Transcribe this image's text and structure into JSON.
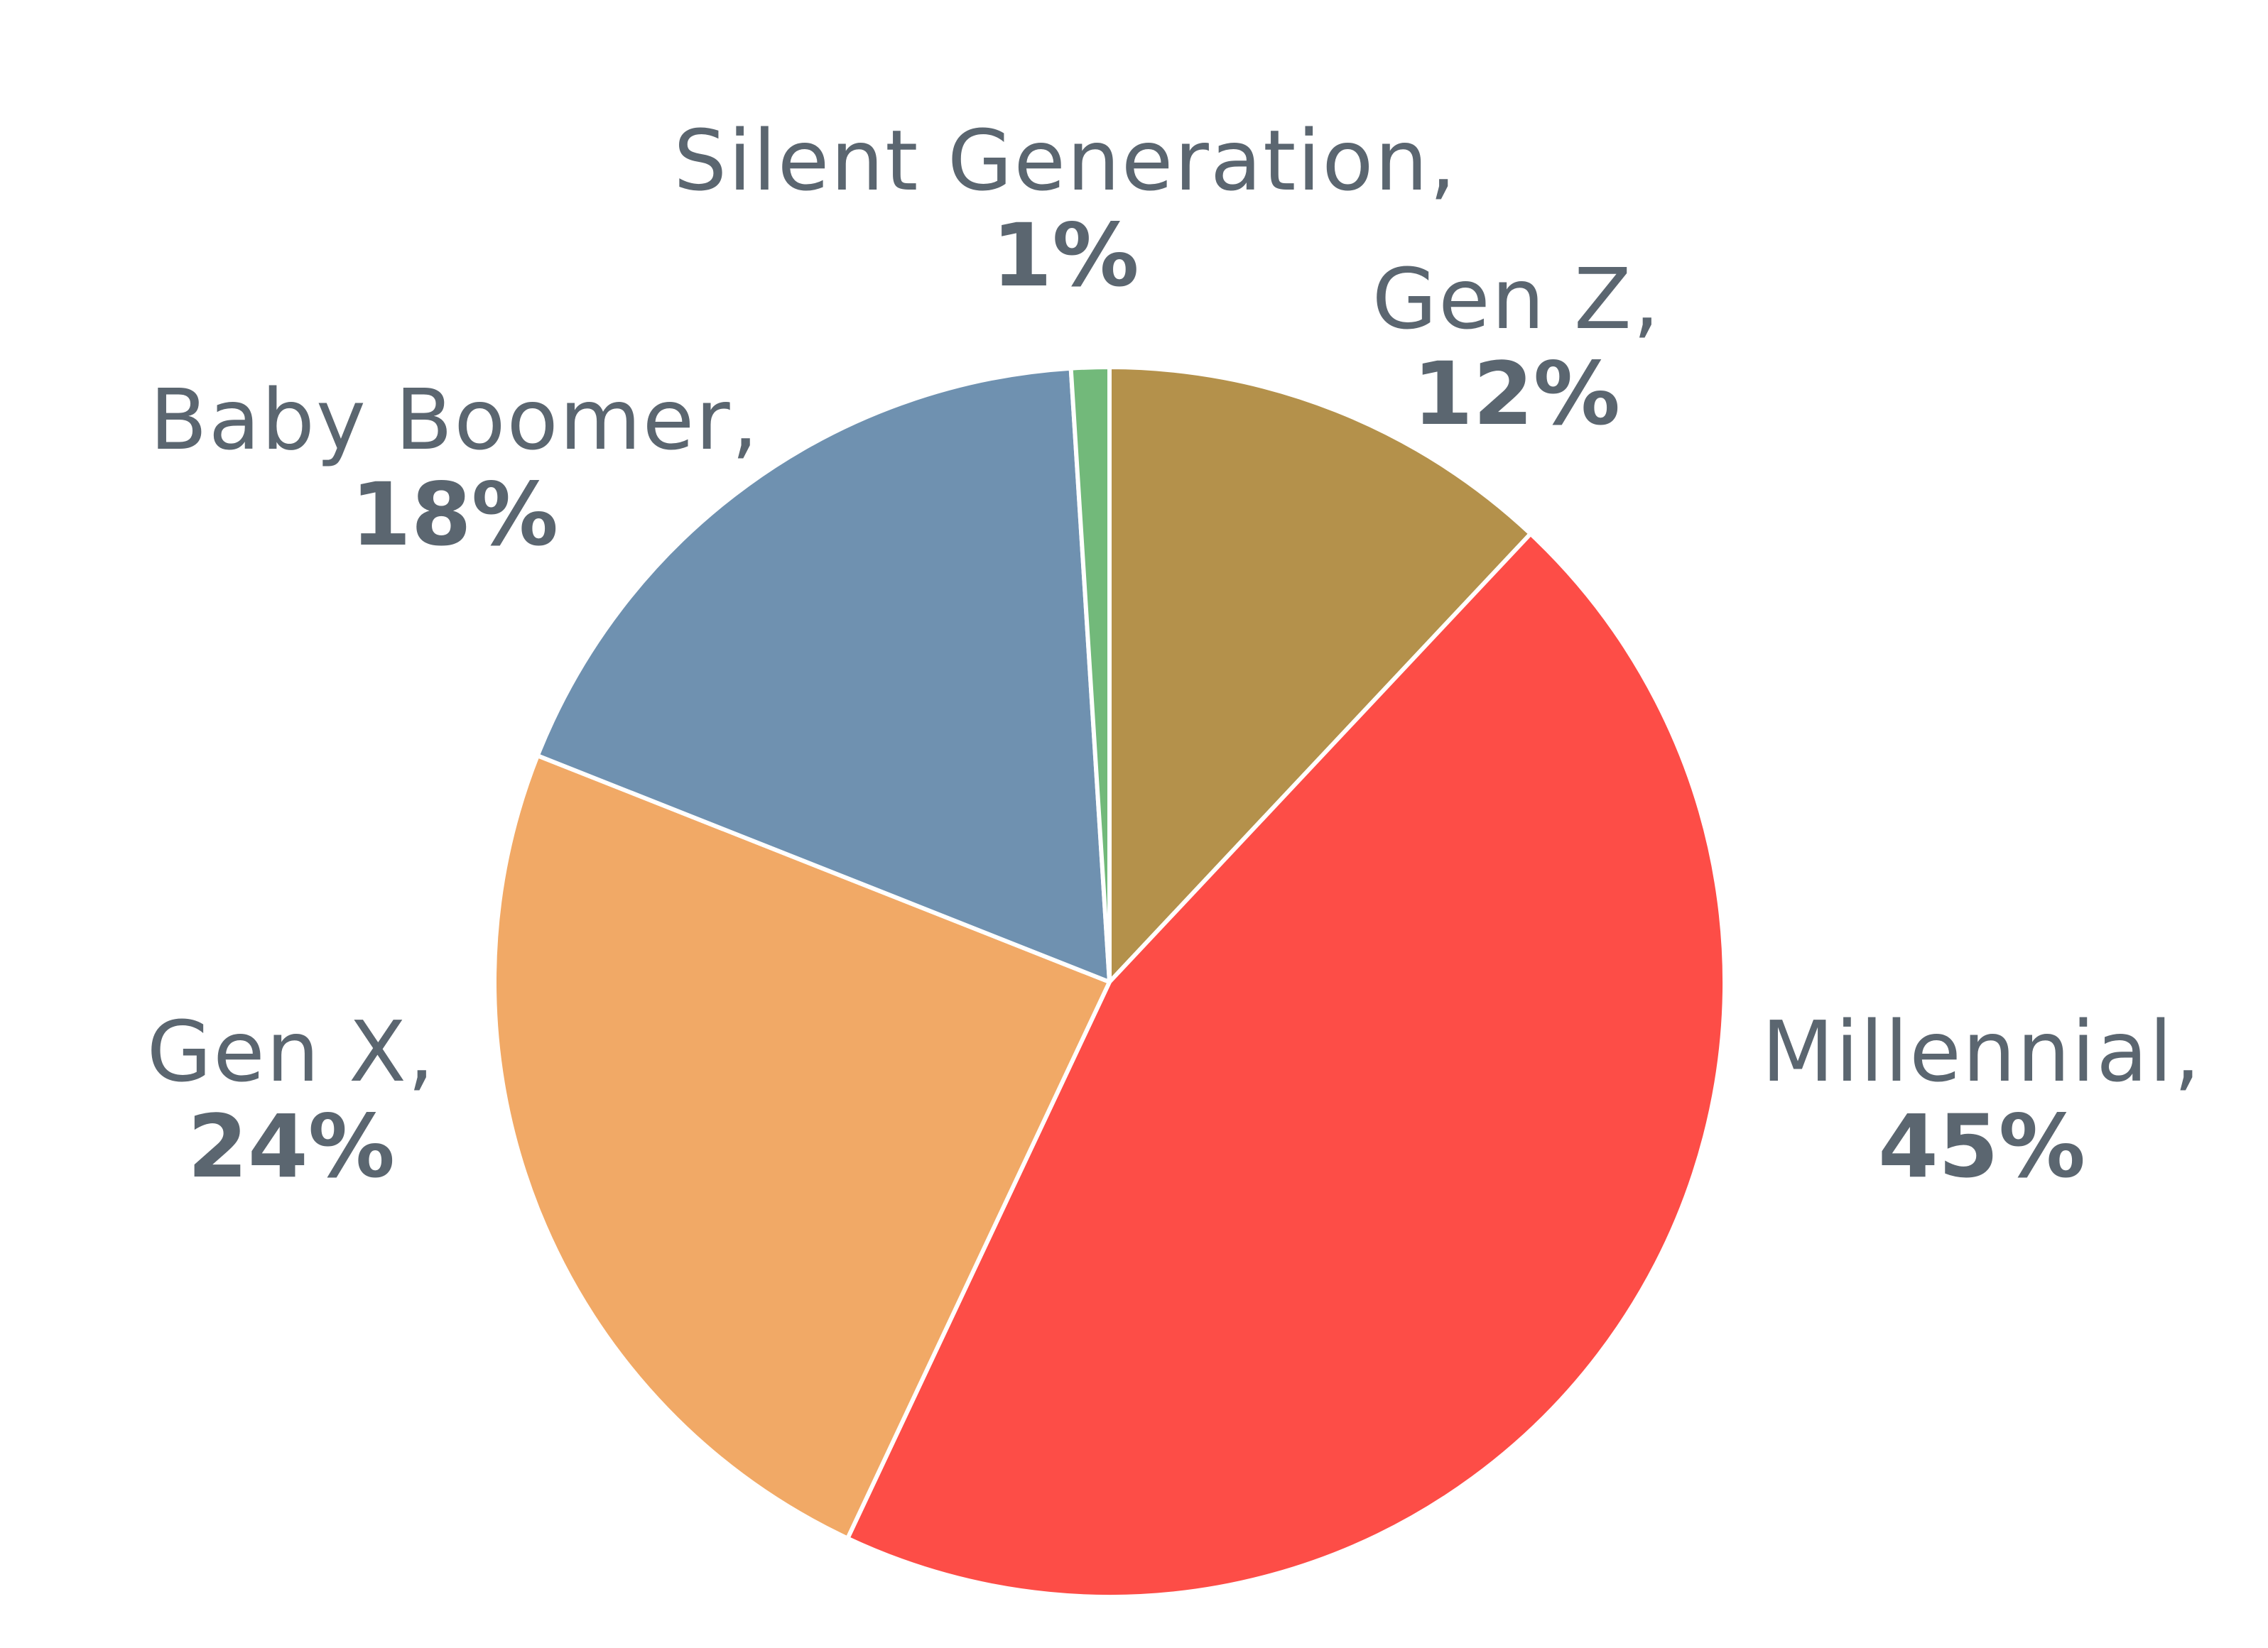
{
  "chart_data": {
    "type": "pie",
    "start_angle_deg": 0,
    "direction": "clockwise",
    "slices": [
      {
        "label": "Gen Z",
        "value": 12,
        "value_label": "12%",
        "color": "#b4914b"
      },
      {
        "label": "Millennial",
        "value": 45,
        "value_label": "45%",
        "color": "#fd4d47"
      },
      {
        "label": "Gen X",
        "value": 24,
        "value_label": "24%",
        "color": "#f1a966"
      },
      {
        "label": "Baby Boomer",
        "value": 18,
        "value_label": "18%",
        "color": "#6f91b0"
      },
      {
        "label": "Silent Generation",
        "value": 1,
        "value_label": "1%",
        "color": "#72b97a"
      }
    ],
    "label_separator": ",",
    "label_color": "#5b6670",
    "legend": "none"
  }
}
